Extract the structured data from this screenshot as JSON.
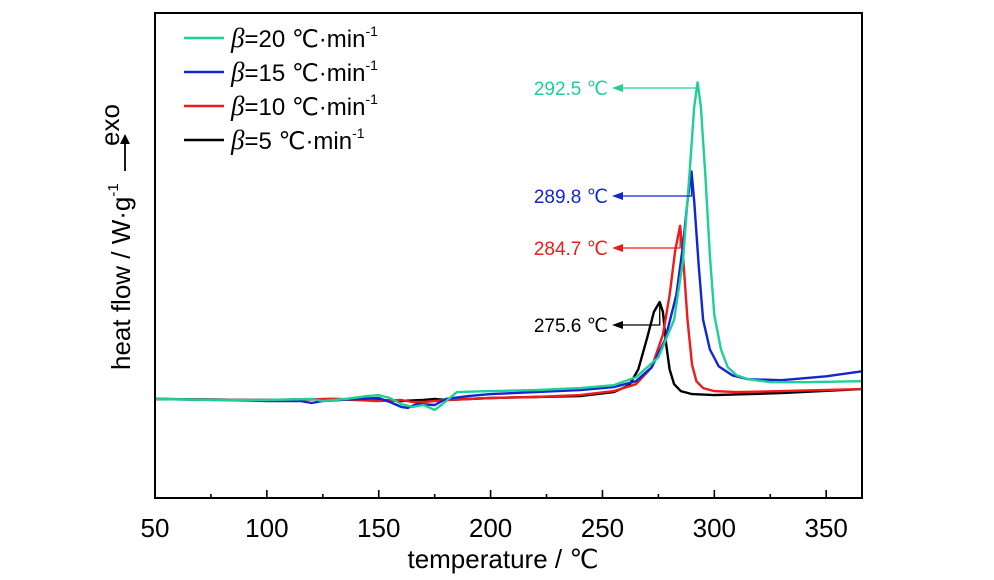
{
  "chart_data": {
    "type": "line",
    "xlabel": "temperature / ℃",
    "ylabel": "heat flow / W·g",
    "ylabel_superscript": "-1",
    "exo_label": "exo",
    "xlim": [
      50,
      366
    ],
    "ylim": [
      -1.0,
      3.9
    ],
    "xticks": [
      "50",
      "100",
      "150",
      "200",
      "250",
      "300",
      "350"
    ],
    "legend_position": "top-left",
    "series": [
      {
        "legend_prefix": "β",
        "legend_rest": "=20 ℃·min",
        "legend_sup": "-1",
        "color": "#1fcf97",
        "x": [
          50,
          80,
          100,
          120,
          125,
          135,
          145,
          150,
          155,
          160,
          165,
          170,
          175,
          178,
          185,
          200,
          220,
          240,
          255,
          265,
          275,
          282,
          286,
          289,
          291,
          292.5,
          294,
          296,
          298,
          300,
          303,
          306,
          310,
          315,
          325,
          340,
          366
        ],
        "y": [
          0,
          -0.01,
          -0.01,
          0.0,
          -0.02,
          0.0,
          0.03,
          0.04,
          0.01,
          -0.05,
          -0.08,
          -0.06,
          -0.11,
          -0.06,
          0.07,
          0.08,
          0.09,
          0.11,
          0.14,
          0.22,
          0.42,
          0.8,
          1.4,
          2.3,
          2.95,
          3.2,
          2.95,
          2.25,
          1.45,
          0.85,
          0.5,
          0.32,
          0.24,
          0.2,
          0.17,
          0.17,
          0.18
        ]
      },
      {
        "legend_prefix": "β",
        "legend_rest": "=15 ℃·min",
        "legend_sup": "-1",
        "color": "#1026d0",
        "x": [
          50,
          80,
          100,
          115,
          120,
          125,
          140,
          150,
          155,
          160,
          163,
          167,
          175,
          180,
          190,
          200,
          220,
          240,
          255,
          265,
          272,
          278,
          283,
          286,
          288,
          289.8,
          291,
          293,
          295,
          298,
          302,
          308,
          315,
          330,
          350,
          366
        ],
        "y": [
          0,
          -0.01,
          -0.02,
          -0.02,
          -0.04,
          -0.02,
          0.0,
          0.01,
          -0.03,
          -0.08,
          -0.09,
          -0.05,
          -0.06,
          0.0,
          0.03,
          0.05,
          0.07,
          0.09,
          0.12,
          0.18,
          0.32,
          0.6,
          1.05,
          1.55,
          2.0,
          2.3,
          2.0,
          1.35,
          0.8,
          0.5,
          0.33,
          0.24,
          0.2,
          0.19,
          0.23,
          0.28
        ]
      },
      {
        "legend_prefix": "β",
        "legend_rest": "=10 ℃·min",
        "legend_sup": "-1",
        "color": "#ee1b1b",
        "x": [
          50,
          100,
          130,
          150,
          160,
          165,
          170,
          180,
          190,
          200,
          220,
          240,
          255,
          265,
          272,
          277,
          280,
          282.5,
          284.7,
          286,
          288,
          290,
          292,
          295,
          300,
          310,
          330,
          366
        ],
        "y": [
          0,
          -0.01,
          0.0,
          -0.02,
          -0.01,
          -0.03,
          -0.03,
          -0.01,
          0.0,
          0.01,
          0.02,
          0.04,
          0.08,
          0.15,
          0.32,
          0.65,
          1.05,
          1.5,
          1.75,
          1.45,
          0.8,
          0.35,
          0.18,
          0.11,
          0.08,
          0.07,
          0.08,
          0.1
        ]
      },
      {
        "legend_prefix": "β",
        "legend_rest": "=5 ℃·min",
        "legend_sup": "-1",
        "color": "#000000",
        "x": [
          50,
          100,
          130,
          150,
          160,
          170,
          175,
          180,
          190,
          200,
          220,
          240,
          255,
          262,
          266,
          270,
          273,
          275.6,
          277,
          278.5,
          280,
          282,
          285,
          290,
          300,
          330,
          366
        ],
        "y": [
          0,
          -0.01,
          0.0,
          -0.01,
          -0.02,
          -0.01,
          0.0,
          -0.01,
          0.0,
          0.01,
          0.02,
          0.03,
          0.07,
          0.14,
          0.3,
          0.62,
          0.88,
          0.98,
          0.88,
          0.55,
          0.3,
          0.15,
          0.08,
          0.05,
          0.04,
          0.06,
          0.1
        ]
      }
    ],
    "annotations": [
      {
        "text": "292.5 ℃",
        "peak_x": 292.5,
        "peak_y": 3.2,
        "color": "#1fcf97"
      },
      {
        "text": "289.8 ℃",
        "peak_x": 289.8,
        "peak_y": 2.3,
        "color": "#1026d0"
      },
      {
        "text": "284.7 ℃",
        "peak_x": 284.7,
        "peak_y": 1.75,
        "color": "#ee1b1b"
      },
      {
        "text": "275.6 ℃",
        "peak_x": 275.6,
        "peak_y": 0.98,
        "color": "#000000"
      }
    ]
  }
}
